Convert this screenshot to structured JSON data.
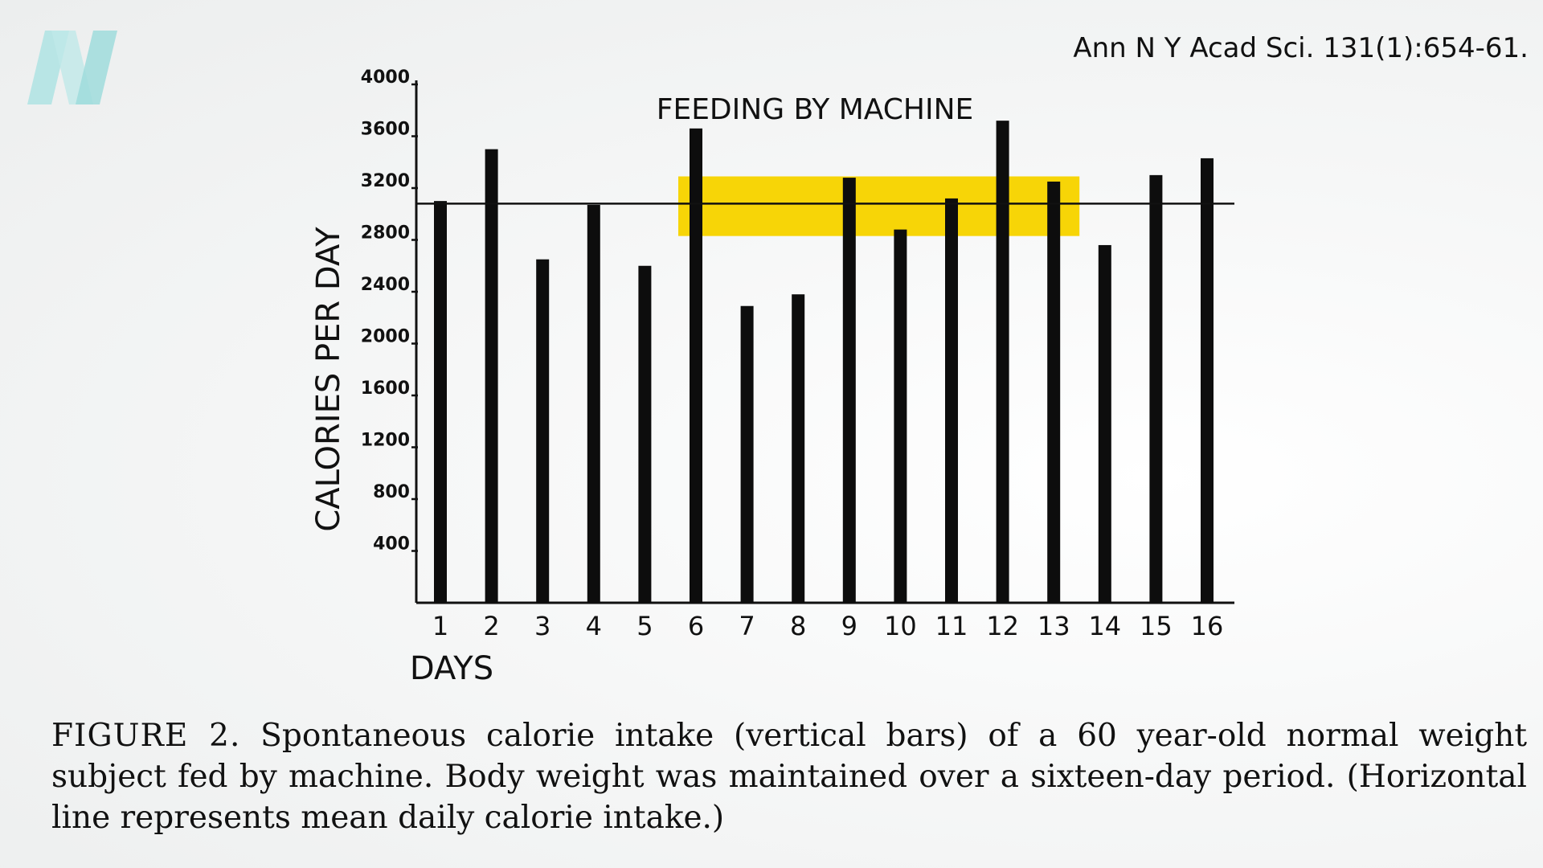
{
  "citation": "Ann N Y Acad Sci. 131(1):654-61.",
  "logo": {
    "icon": "N-logo",
    "color": "#aee3e3"
  },
  "chart_data": {
    "type": "bar",
    "title": "FEEDING BY MACHINE",
    "xlabel": "DAYS",
    "ylabel": "CALORIES PER DAY",
    "categories": [
      "1",
      "2",
      "3",
      "4",
      "5",
      "6",
      "7",
      "8",
      "9",
      "10",
      "11",
      "12",
      "13",
      "14",
      "15",
      "16"
    ],
    "values": [
      3100,
      3500,
      2650,
      3070,
      2600,
      3660,
      2290,
      2380,
      3280,
      2880,
      3120,
      3720,
      3250,
      2760,
      3300,
      3430
    ],
    "yticks": [
      400,
      800,
      1200,
      1600,
      2000,
      2400,
      2800,
      3200,
      3600,
      4000
    ],
    "ytick_labels": [
      "400",
      "800",
      "1200",
      "1600",
      "2000",
      "2400",
      "2800",
      "3200",
      "3600",
      "4000"
    ],
    "ylim": [
      0,
      4000
    ],
    "mean_line": 3080,
    "highlight": {
      "y_from": 2830,
      "y_to": 3290,
      "x_from": "6",
      "x_to": "13",
      "color": "#f7d507"
    },
    "bar_color": "#0d0d0d",
    "grid": false
  },
  "caption": {
    "label": "FIGURE 2.",
    "text": "Spontaneous calorie intake (vertical bars) of a 60 year-old normal weight subject fed by machine. Body weight was maintained over a sixteen-day period. (Horizontal line represents mean daily calorie intake.)"
  }
}
